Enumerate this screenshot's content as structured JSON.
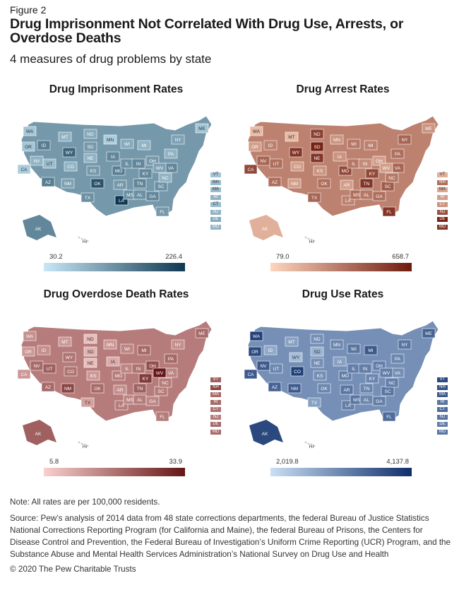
{
  "figure_label": "Figure 2",
  "title": "Drug Imprisonment Not Correlated With Drug Use, Arrests, or Overdose Deaths",
  "subtitle": "4 measures of drug problems by state",
  "panels": [
    {
      "title": "Drug Imprisonment Rates",
      "scale_min": "30.2",
      "scale_max": "226.4",
      "color_low": "#c8e8f6",
      "color_high": "#0f3750",
      "northeast_labels": [
        "VT",
        "NH",
        "MA",
        "RI",
        "CT",
        "NJ",
        "DE",
        "MD"
      ]
    },
    {
      "title": "Drug Arrest Rates",
      "scale_min": "79.0",
      "scale_max": "658.7",
      "color_low": "#fdd6bf",
      "color_high": "#6e1a0d",
      "northeast_labels": [
        "VT",
        "NH",
        "MA",
        "RI",
        "CT",
        "NJ",
        "DE",
        "MD"
      ]
    },
    {
      "title": "Drug Overdose Death Rates",
      "scale_min": "5.8",
      "scale_max": "33.9",
      "color_low": "#f8d0ce",
      "color_high": "#651616",
      "northeast_labels": [
        "VT",
        "NH",
        "MA",
        "RI",
        "CT",
        "NJ",
        "DE",
        "MD"
      ]
    },
    {
      "title": "Drug Use Rates",
      "scale_min": "2,019.8",
      "scale_max": "4,137.8",
      "color_low": "#c9dff3",
      "color_high": "#0f2e6b",
      "northeast_labels": [
        "VT",
        "NH",
        "MA",
        "RI",
        "CT",
        "NJ",
        "DE",
        "MD"
      ]
    }
  ],
  "note": "Note: All rates are per 100,000 residents.",
  "source": "Source: Pew’s analysis of 2014 data from 48 state corrections departments, the federal Bureau of Justice Statistics National Corrections Reporting Program (for California and Maine), the federal Bureau of Prisons, the Centers for Disease Control and Prevention, the Federal Bureau of Investigation’s Uniform Crime Reporting (UCR) Program, and the Substance Abuse and Mental Health Services Administration’s National Survey on Drug Use and Health",
  "copyright": "© 2020 The Pew Charitable Trusts"
}
